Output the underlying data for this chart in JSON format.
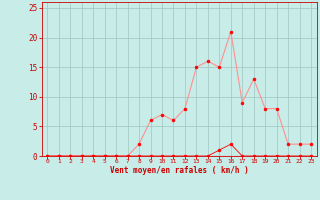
{
  "x": [
    0,
    1,
    2,
    3,
    4,
    5,
    6,
    7,
    8,
    9,
    10,
    11,
    12,
    13,
    14,
    15,
    16,
    17,
    18,
    19,
    20,
    21,
    22,
    23
  ],
  "y_mean": [
    0,
    0,
    0,
    0,
    0,
    0,
    0,
    0,
    2,
    6,
    7,
    6,
    8,
    15,
    16,
    15,
    21,
    9,
    13,
    8,
    8,
    2,
    2,
    2
  ],
  "y_gust": [
    0,
    0,
    0,
    0,
    0,
    0,
    0,
    0,
    0,
    0,
    0,
    0,
    0,
    0,
    0,
    1,
    2,
    0,
    0,
    0,
    0,
    0,
    0,
    0
  ],
  "line_color": "#FF9090",
  "marker_color": "#FF0000",
  "bg_color": "#C8ECE8",
  "grid_color": "#A0C4C0",
  "xlabel": "Vent moyen/en rafales ( km/h )",
  "xlabel_color": "#CC0000",
  "tick_color": "#CC0000",
  "xlim": [
    -0.5,
    23.5
  ],
  "ylim": [
    0,
    26
  ],
  "yticks": [
    0,
    5,
    10,
    15,
    20,
    25
  ],
  "xticks": [
    0,
    1,
    2,
    3,
    4,
    5,
    6,
    7,
    8,
    9,
    10,
    11,
    12,
    13,
    14,
    15,
    16,
    17,
    18,
    19,
    20,
    21,
    22,
    23
  ]
}
